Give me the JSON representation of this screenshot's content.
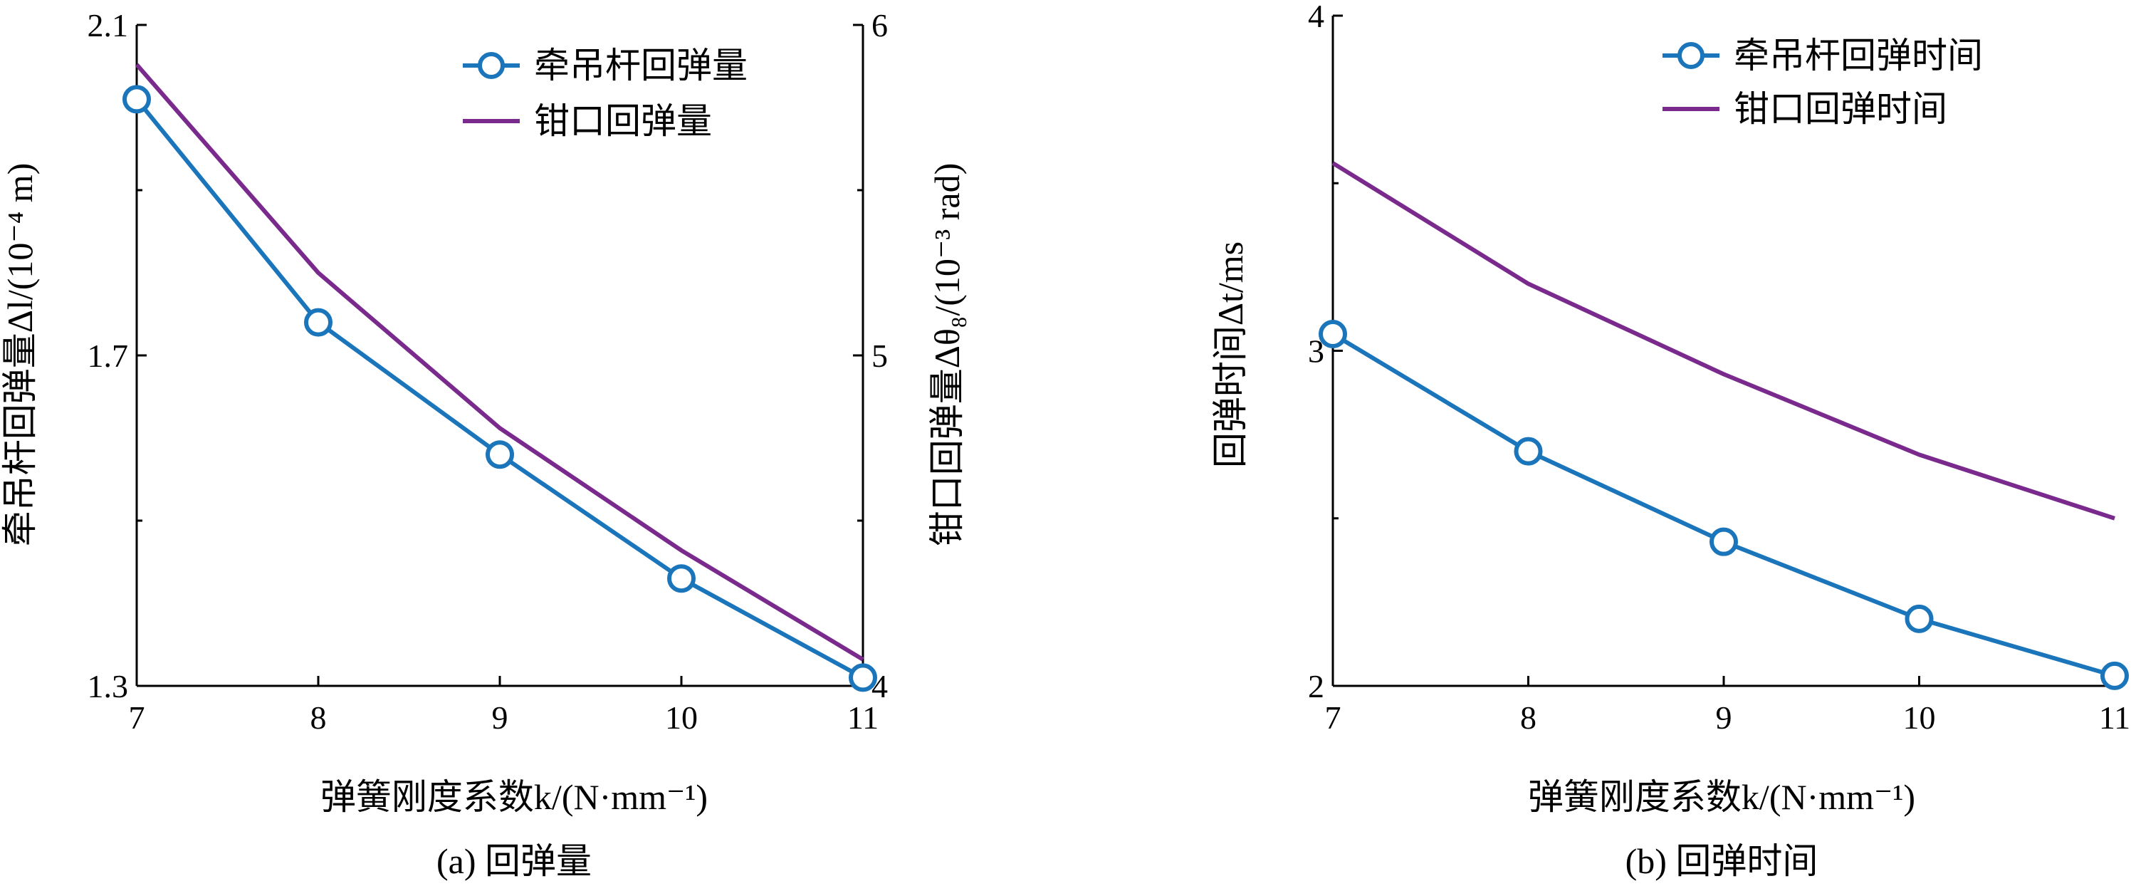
{
  "chart_data": [
    {
      "type": "line",
      "caption": "(a) 回弹量",
      "xlabel": "弹簧刚度系数k/(N·mm⁻¹)",
      "ylabel": "牵吊杆回弹量Δl/(10⁻⁴ m)",
      "ylabel_right": "钳口回弹量Δθ₈/(10⁻³ rad)",
      "xlim": [
        7,
        11
      ],
      "ylim": [
        1.3,
        2.1
      ],
      "ylim_right": [
        4,
        6
      ],
      "x_ticks": [
        "7",
        "8",
        "9",
        "10",
        "11"
      ],
      "y_ticks": [
        "1.3",
        "1.7",
        "2.1"
      ],
      "y_ticks_right": [
        "4",
        "5",
        "6"
      ],
      "legend_position": "top-right",
      "series": [
        {
          "name": "牵吊杆回弹量",
          "axis": "left",
          "color": "#1a75bb",
          "marker": "circle",
          "x": [
            7,
            8,
            9,
            10,
            11
          ],
          "y": [
            2.01,
            1.74,
            1.58,
            1.43,
            1.31
          ]
        },
        {
          "name": "钳口回弹量",
          "axis": "right",
          "color": "#7a2a8c",
          "marker": "none",
          "x": [
            7,
            8,
            9,
            10,
            11
          ],
          "y": [
            5.88,
            5.25,
            4.78,
            4.41,
            4.08
          ]
        }
      ]
    },
    {
      "type": "line",
      "caption": "(b) 回弹时间",
      "xlabel": "弹簧刚度系数k/(N·mm⁻¹)",
      "ylabel": "回弹时间Δt/ms",
      "xlim": [
        7,
        11
      ],
      "ylim": [
        2,
        4
      ],
      "x_ticks": [
        "7",
        "8",
        "9",
        "10",
        "11"
      ],
      "y_ticks": [
        "2",
        "3",
        "4"
      ],
      "legend_position": "top-right",
      "series": [
        {
          "name": "牵吊杆回弹时间",
          "axis": "left",
          "color": "#1a75bb",
          "marker": "circle",
          "x": [
            7,
            8,
            9,
            10,
            11
          ],
          "y": [
            3.05,
            2.7,
            2.43,
            2.2,
            2.03
          ]
        },
        {
          "name": "钳口回弹时间",
          "axis": "left",
          "color": "#7a2a8c",
          "marker": "none",
          "x": [
            7,
            8,
            9,
            10,
            11
          ],
          "y": [
            3.56,
            3.2,
            2.93,
            2.69,
            2.5
          ]
        }
      ]
    }
  ]
}
